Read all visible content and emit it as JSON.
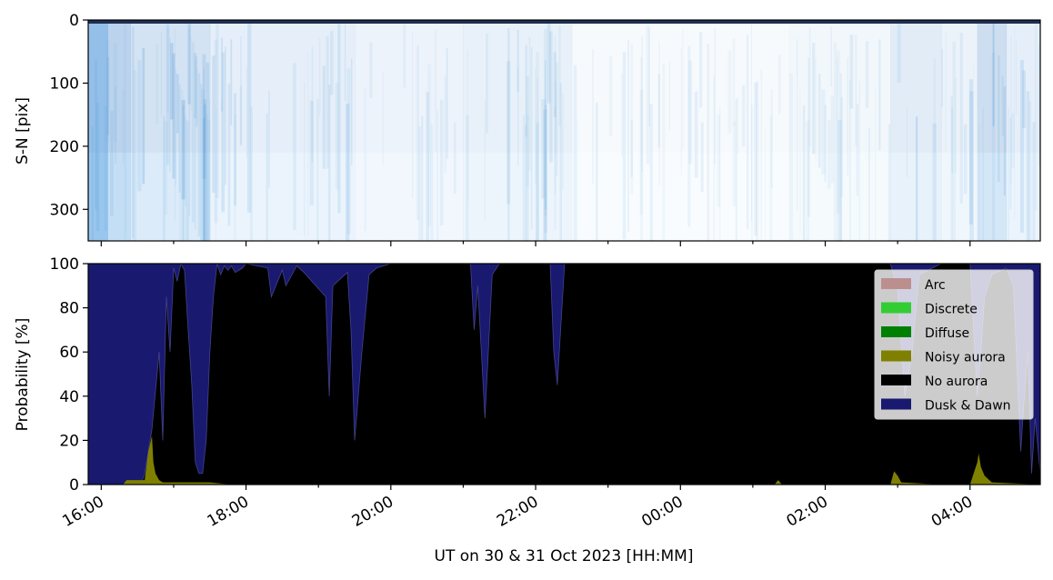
{
  "chart_data": [
    {
      "type": "heatmap",
      "title": "",
      "xlabel": "",
      "ylabel": "S-N [pix]",
      "ylim": [
        350,
        0
      ],
      "yticks": [
        0,
        100,
        200,
        300
      ],
      "xlim_hours": [
        15.82,
        28.97
      ],
      "xticks_hours": [
        16,
        18,
        20,
        22,
        24,
        26,
        28
      ],
      "colormap_description": "keogram, white to light blue with darker blue streaks",
      "bands": [
        {
          "hour_start": 15.82,
          "hour_end": 16.4,
          "intensity": 0.75
        },
        {
          "hour_start": 16.4,
          "hour_end": 17.5,
          "intensity": 0.45
        },
        {
          "hour_start": 17.5,
          "hour_end": 19.5,
          "intensity": 0.25
        },
        {
          "hour_start": 19.5,
          "hour_end": 21.0,
          "intensity": 0.18
        },
        {
          "hour_start": 21.0,
          "hour_end": 22.5,
          "intensity": 0.22
        },
        {
          "hour_start": 22.5,
          "hour_end": 25.5,
          "intensity": 0.08
        },
        {
          "hour_start": 25.5,
          "hour_end": 26.9,
          "intensity": 0.12
        },
        {
          "hour_start": 26.9,
          "hour_end": 27.6,
          "intensity": 0.3
        },
        {
          "hour_start": 27.6,
          "hour_end": 28.1,
          "intensity": 0.2
        },
        {
          "hour_start": 28.1,
          "hour_end": 28.5,
          "intensity": 0.55
        },
        {
          "hour_start": 28.5,
          "hour_end": 28.97,
          "intensity": 0.25
        }
      ]
    },
    {
      "type": "area",
      "title": "",
      "xlabel": "UT on 30 & 31 Oct 2023 [HH:MM]",
      "ylabel": "Probability [%]",
      "ylim": [
        0,
        100
      ],
      "yticks": [
        0,
        20,
        40,
        60,
        80,
        100
      ],
      "xlim_hours": [
        15.82,
        28.97
      ],
      "xticks_hours": [
        16,
        18,
        20,
        22,
        24,
        26,
        28
      ],
      "xtick_labels": [
        "16:00",
        "18:00",
        "20:00",
        "22:00",
        "00:00",
        "02:00",
        "04:00"
      ],
      "legend_position": "top-right",
      "legend": [
        {
          "label": "Arc",
          "color": "#bc8f8f"
        },
        {
          "label": "Discrete",
          "color": "#32cd32"
        },
        {
          "label": "Diffuse",
          "color": "#008000"
        },
        {
          "label": "Noisy aurora",
          "color": "#808000"
        },
        {
          "label": "No aurora",
          "color": "#000000"
        },
        {
          "label": "Dusk & Dawn",
          "color": "#191970"
        }
      ],
      "series": [
        {
          "name": "Noisy aurora",
          "x": [
            15.82,
            16.3,
            16.35,
            16.6,
            16.65,
            16.7,
            16.72,
            16.75,
            16.8,
            16.85,
            17.0,
            17.5,
            17.8,
            18.0,
            20.0,
            22.0,
            24.0,
            25.3,
            25.35,
            25.4,
            26.0,
            26.9,
            26.95,
            27.0,
            27.05,
            27.6,
            28.0,
            28.05,
            28.1,
            28.12,
            28.15,
            28.2,
            28.3,
            28.97
          ],
          "y": [
            0,
            0,
            2,
            2,
            15,
            22,
            10,
            5,
            2,
            1,
            1,
            1,
            0,
            0,
            0,
            0,
            0,
            0,
            2,
            0,
            0,
            0,
            6,
            4,
            1,
            0,
            0,
            5,
            10,
            14,
            8,
            4,
            1,
            0
          ]
        },
        {
          "name": "No aurora",
          "x": [
            15.82,
            16.55,
            16.6,
            16.7,
            16.8,
            16.85,
            16.9,
            16.95,
            17.0,
            17.05,
            17.1,
            17.15,
            17.2,
            17.25,
            17.3,
            17.35,
            17.4,
            17.45,
            17.5,
            17.55,
            17.6,
            17.65,
            17.7,
            17.75,
            17.8,
            17.85,
            17.95,
            18.0,
            18.3,
            18.35,
            18.5,
            18.55,
            18.7,
            18.8,
            19.1,
            19.15,
            19.2,
            19.4,
            19.45,
            19.5,
            19.6,
            19.7,
            19.8,
            20.0,
            21.1,
            21.15,
            21.2,
            21.3,
            21.4,
            21.5,
            22.2,
            22.25,
            22.3,
            22.4,
            24.0,
            26.0,
            26.9,
            27.0,
            27.1,
            27.2,
            27.3,
            27.6,
            28.0,
            28.05,
            28.1,
            28.15,
            28.2,
            28.3,
            28.5,
            28.6,
            28.7,
            28.75,
            28.8,
            28.85,
            28.9,
            28.97
          ],
          "y": [
            0,
            0,
            5,
            25,
            60,
            20,
            85,
            60,
            98,
            92,
            100,
            97,
            70,
            45,
            10,
            5,
            5,
            20,
            60,
            85,
            100,
            95,
            99,
            97,
            99,
            96,
            98,
            100,
            98,
            85,
            97,
            90,
            99,
            96,
            85,
            40,
            90,
            96,
            70,
            20,
            60,
            95,
            98,
            100,
            100,
            70,
            90,
            30,
            95,
            100,
            100,
            60,
            45,
            100,
            100,
            100,
            100,
            88,
            40,
            60,
            95,
            100,
            100,
            70,
            40,
            60,
            85,
            95,
            98,
            90,
            15,
            40,
            60,
            5,
            30,
            5
          ]
        }
      ]
    }
  ]
}
